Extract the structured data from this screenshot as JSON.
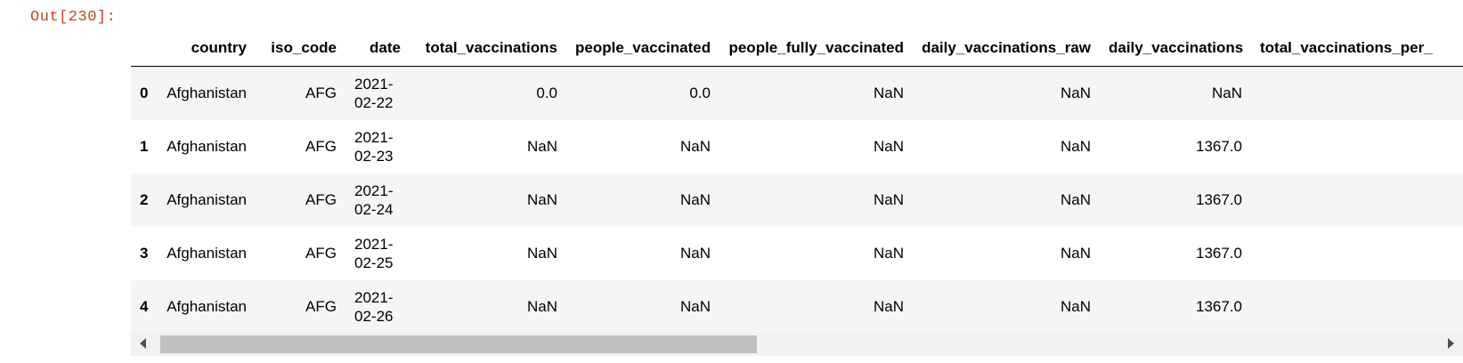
{
  "prompt": "Out[230]:",
  "columns": [
    "",
    "country",
    "iso_code",
    "date",
    "total_vaccinations",
    "people_vaccinated",
    "people_fully_vaccinated",
    "daily_vaccinations_raw",
    "daily_vaccinations",
    "total_vaccinations_per_"
  ],
  "rows": [
    {
      "index": "0",
      "country": "Afghanistan",
      "iso_code": "AFG",
      "date_1": "2021-",
      "date_2": "02-22",
      "total_vaccinations": "0.0",
      "people_vaccinated": "0.0",
      "people_fully_vaccinated": "NaN",
      "daily_vaccinations_raw": "NaN",
      "daily_vaccinations": "NaN"
    },
    {
      "index": "1",
      "country": "Afghanistan",
      "iso_code": "AFG",
      "date_1": "2021-",
      "date_2": "02-23",
      "total_vaccinations": "NaN",
      "people_vaccinated": "NaN",
      "people_fully_vaccinated": "NaN",
      "daily_vaccinations_raw": "NaN",
      "daily_vaccinations": "1367.0"
    },
    {
      "index": "2",
      "country": "Afghanistan",
      "iso_code": "AFG",
      "date_1": "2021-",
      "date_2": "02-24",
      "total_vaccinations": "NaN",
      "people_vaccinated": "NaN",
      "people_fully_vaccinated": "NaN",
      "daily_vaccinations_raw": "NaN",
      "daily_vaccinations": "1367.0"
    },
    {
      "index": "3",
      "country": "Afghanistan",
      "iso_code": "AFG",
      "date_1": "2021-",
      "date_2": "02-25",
      "total_vaccinations": "NaN",
      "people_vaccinated": "NaN",
      "people_fully_vaccinated": "NaN",
      "daily_vaccinations_raw": "NaN",
      "daily_vaccinations": "1367.0"
    },
    {
      "index": "4",
      "country": "Afghanistan",
      "iso_code": "AFG",
      "date_1": "2021-",
      "date_2": "02-26",
      "total_vaccinations": "NaN",
      "people_vaccinated": "NaN",
      "people_fully_vaccinated": "NaN",
      "daily_vaccinations_raw": "NaN",
      "daily_vaccinations": "1367.0"
    }
  ],
  "colors": {
    "prompt": "#c3441e",
    "stripe": "#f5f5f5",
    "scroll_thumb": "#c1c1c1"
  }
}
